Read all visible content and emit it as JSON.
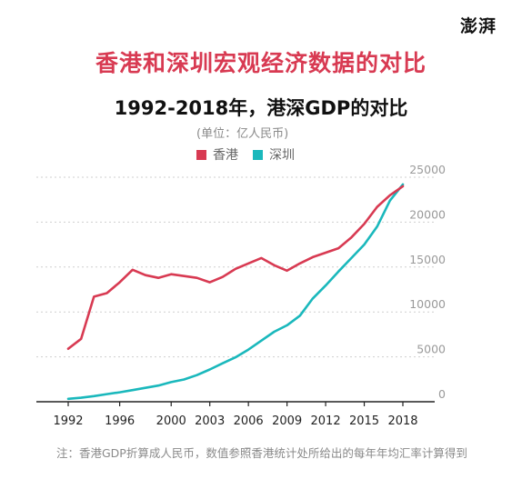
{
  "logo_text": "澎湃",
  "chart_data": {
    "type": "line",
    "title": "香港和深圳宏观经济数据的对比",
    "subtitle": "1992-2018年，港深GDP的对比",
    "unit_label": "(单位：亿人民币)",
    "x": [
      1992,
      1993,
      1994,
      1995,
      1996,
      1997,
      1998,
      1999,
      2000,
      2001,
      2002,
      2003,
      2004,
      2005,
      2006,
      2007,
      2008,
      2009,
      2010,
      2011,
      2012,
      2013,
      2014,
      2015,
      2016,
      2017,
      2018
    ],
    "x_ticks": [
      1992,
      1996,
      2000,
      2003,
      2006,
      2009,
      2012,
      2015,
      2018
    ],
    "x_tick_labels": [
      "1992",
      "1996",
      "2000",
      "2003",
      "2006",
      "2009",
      "2012",
      "2015",
      "2018"
    ],
    "xlim": [
      1992,
      2018
    ],
    "y_ticks": [
      0,
      5000,
      10000,
      15000,
      20000,
      25000
    ],
    "y_tick_labels": [
      "0",
      "5000",
      "10000",
      "15000",
      "20000",
      "25000"
    ],
    "ylim": [
      0,
      25000
    ],
    "grid": "horizontal dashed",
    "legend_position": "top-left",
    "series": [
      {
        "name": "香港",
        "color": "#d83a52",
        "values": [
          5900,
          7000,
          11700,
          12100,
          13300,
          14700,
          14100,
          13800,
          14200,
          14000,
          13800,
          13300,
          13900,
          14800,
          15400,
          16000,
          15200,
          14600,
          15400,
          16100,
          16600,
          17100,
          18300,
          19800,
          21700,
          23000,
          24000
        ]
      },
      {
        "name": "深圳",
        "color": "#1ab8bc",
        "values": [
          320,
          450,
          630,
          850,
          1050,
          1300,
          1550,
          1800,
          2190,
          2480,
          2970,
          3590,
          4280,
          4950,
          5810,
          6800,
          7790,
          8510,
          9580,
          11500,
          12950,
          14500,
          16000,
          17500,
          19500,
          22400,
          24200
        ]
      }
    ]
  },
  "footnote": "注：香港GDP折算成人民币，数值参照香港统计处所给出的每年年均汇率计算得到"
}
